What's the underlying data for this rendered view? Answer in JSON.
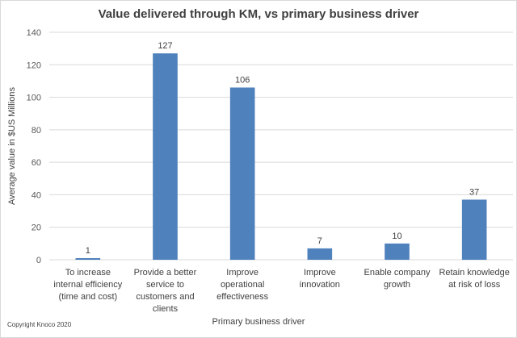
{
  "chart_data": {
    "type": "bar",
    "title": "Value delivered through KM, vs primary business driver",
    "xlabel": "Primary business driver",
    "ylabel": "Average value in $US Millions",
    "ylim": [
      0,
      140
    ],
    "yticks": [
      0,
      20,
      40,
      60,
      80,
      100,
      120,
      140
    ],
    "grid": true,
    "bar_color": "#4f81bd",
    "categories": [
      [
        "To increase",
        "internal efficiency",
        "(time and cost)"
      ],
      [
        "Provide a better",
        "service to",
        "customers and",
        "clients"
      ],
      [
        "Improve",
        "operational",
        "effectiveness"
      ],
      [
        "Improve",
        "innovation"
      ],
      [
        "Enable company",
        "growth"
      ],
      [
        "Retain knowledge",
        "at risk of loss"
      ]
    ],
    "values": [
      1,
      127,
      106,
      7,
      10,
      37
    ],
    "data_labels": [
      "1",
      "127",
      "106",
      "7",
      "10",
      "37"
    ]
  },
  "footer": {
    "copyright": "Copyright Knoco 2020"
  }
}
